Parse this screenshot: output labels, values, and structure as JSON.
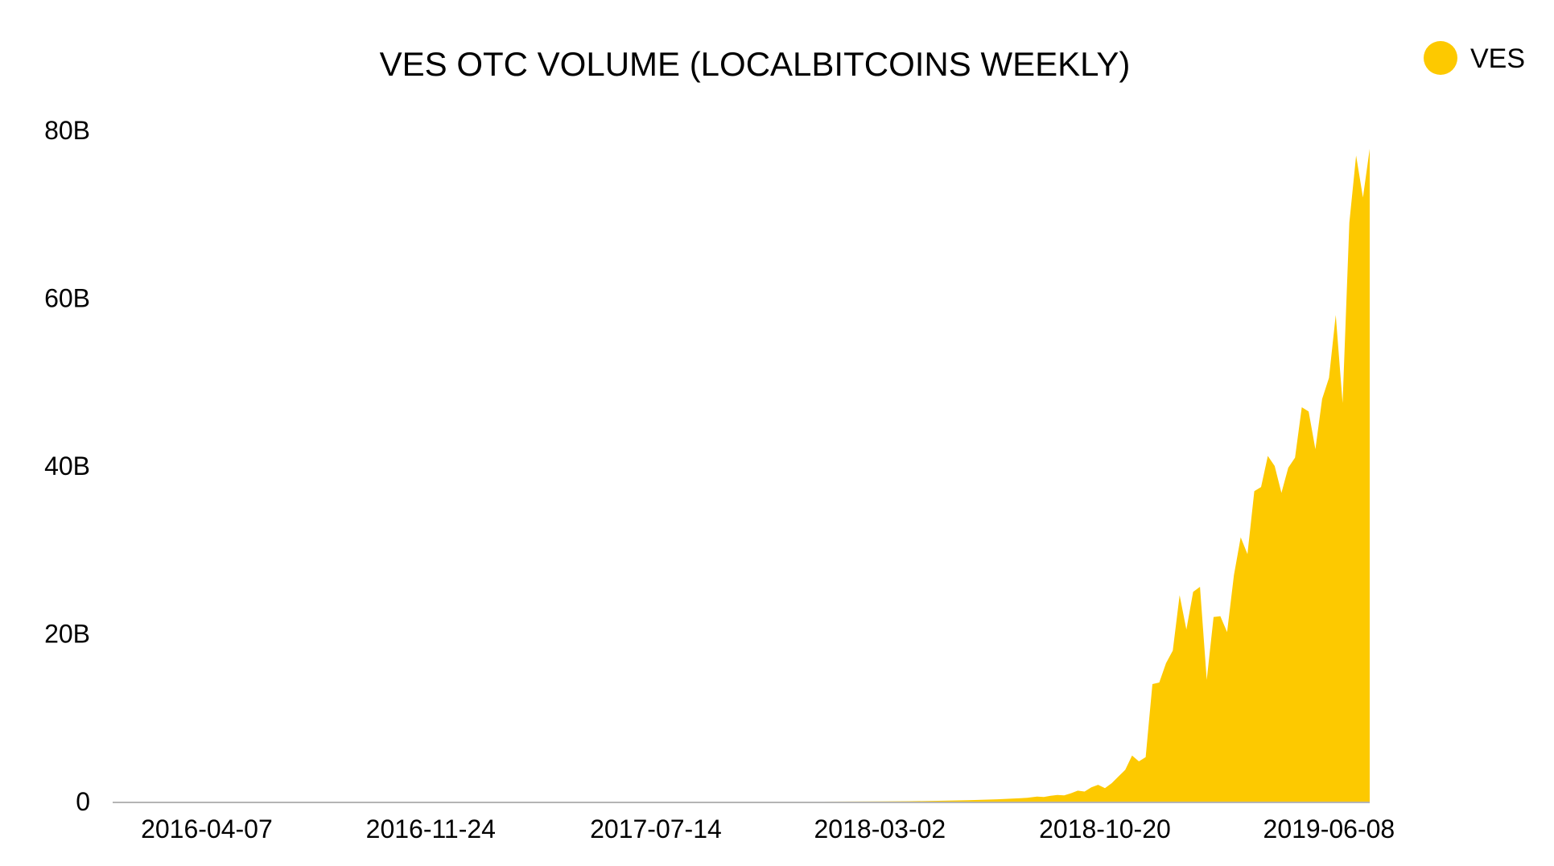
{
  "colors": {
    "series": "#FDC900",
    "axis": "#B4B4B4",
    "text": "#000000",
    "background": "#FFFFFF"
  },
  "chart_data": {
    "type": "area",
    "title": "VES OTC VOLUME (LOCALBITCOINS WEEKLY)",
    "xlabel": "",
    "ylabel": "",
    "x_axis_type": "date",
    "x_tick_labels": [
      "2016-04-07",
      "2016-11-24",
      "2017-07-14",
      "2018-03-02",
      "2018-10-20",
      "2019-06-08"
    ],
    "y_tick_labels": [
      "0",
      "20B",
      "40B",
      "60B",
      "80B"
    ],
    "y_ticks": [
      0,
      20000000000,
      40000000000,
      60000000000,
      80000000000
    ],
    "ylim": [
      0,
      80000000000
    ],
    "xlim": [
      "2016-01-01",
      "2019-07-20"
    ],
    "grid": false,
    "legend": {
      "position": "top-right",
      "entries": [
        "VES"
      ]
    },
    "series": [
      {
        "name": "VES",
        "x": [
          "2016-01-01",
          "2017-06-01",
          "2018-01-01",
          "2018-03-01",
          "2018-04-01",
          "2018-05-01",
          "2018-06-01",
          "2018-07-01",
          "2018-08-01",
          "2018-08-11",
          "2018-08-18",
          "2018-08-25",
          "2018-09-01",
          "2018-09-08",
          "2018-09-15",
          "2018-09-22",
          "2018-09-29",
          "2018-10-06",
          "2018-10-13",
          "2018-10-20",
          "2018-10-27",
          "2018-11-03",
          "2018-11-10",
          "2018-11-17",
          "2018-11-24",
          "2018-12-01",
          "2018-12-08",
          "2018-12-15",
          "2018-12-22",
          "2018-12-29",
          "2019-01-05",
          "2019-01-12",
          "2019-01-19",
          "2019-01-26",
          "2019-02-02",
          "2019-02-09",
          "2019-02-16",
          "2019-02-23",
          "2019-03-02",
          "2019-03-09",
          "2019-03-16",
          "2019-03-23",
          "2019-03-30",
          "2019-04-06",
          "2019-04-13",
          "2019-04-20",
          "2019-04-27",
          "2019-05-04",
          "2019-05-11",
          "2019-05-18",
          "2019-05-25",
          "2019-06-01",
          "2019-06-08",
          "2019-06-15",
          "2019-06-22",
          "2019-06-29",
          "2019-07-06",
          "2019-07-13",
          "2019-07-20"
        ],
        "values": [
          0,
          0,
          0,
          20000000,
          50000000,
          100000000,
          170000000,
          280000000,
          450000000,
          600000000,
          550000000,
          700000000,
          800000000,
          750000000,
          1000000000,
          1300000000,
          1200000000,
          1700000000,
          2000000000,
          1600000000,
          2200000000,
          3000000000,
          3800000000,
          5500000000,
          4800000000,
          5300000000,
          14000000000,
          14200000000,
          16500000000,
          18000000000,
          24600000000,
          20500000000,
          25000000000,
          25600000000,
          14500000000,
          22000000000,
          22100000000,
          20200000000,
          27000000000,
          31500000000,
          29500000000,
          37000000000,
          37500000000,
          41200000000,
          40000000000,
          36800000000,
          39800000000,
          41000000000,
          47000000000,
          46500000000,
          42000000000,
          48000000000,
          50500000000,
          58000000000,
          47500000000,
          69000000000,
          77000000000,
          72000000000,
          77800000000
        ]
      }
    ]
  }
}
